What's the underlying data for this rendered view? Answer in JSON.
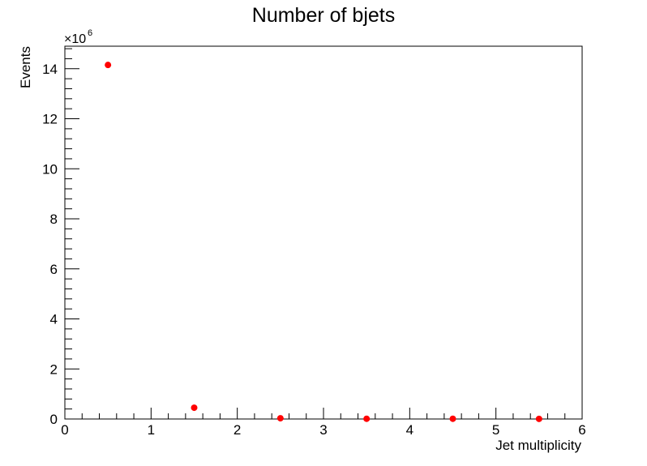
{
  "chart_data": {
    "type": "scatter",
    "title": "Number of bjets",
    "xlabel": "Jet multiplicity",
    "ylabel": "Events",
    "y_multiplier": "×10",
    "y_multiplier_exponent": "6",
    "xlim": [
      0,
      6
    ],
    "ylim": [
      0,
      14.9
    ],
    "x_ticks": [
      "0",
      "1",
      "2",
      "3",
      "4",
      "5",
      "6"
    ],
    "y_ticks": [
      "0",
      "2",
      "4",
      "6",
      "8",
      "10",
      "12",
      "14"
    ],
    "grid": false,
    "marker_color": "#ff0000",
    "series": [
      {
        "x": [
          0.5,
          1.5,
          2.5,
          3.5,
          4.5,
          5.5
        ],
        "y": [
          14.15,
          0.45,
          0.03,
          0.01,
          0.01,
          0.005
        ]
      }
    ]
  }
}
